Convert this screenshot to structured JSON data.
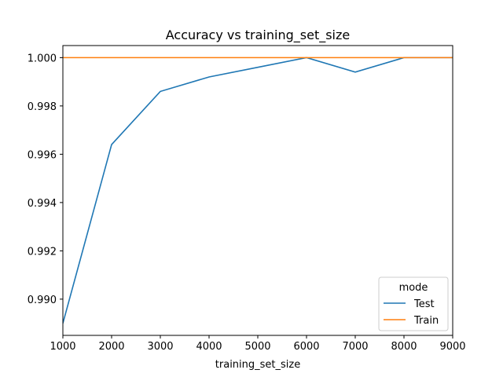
{
  "chart_data": {
    "type": "line",
    "title": "Accuracy vs training_set_size",
    "xlabel": "training_set_size",
    "ylabel": "",
    "xlim": [
      1000,
      9000
    ],
    "ylim": [
      0.9885,
      1.0005
    ],
    "xticks": [
      1000,
      2000,
      3000,
      4000,
      5000,
      6000,
      7000,
      8000,
      9000
    ],
    "yticks": [
      0.99,
      0.992,
      0.994,
      0.996,
      0.998,
      1.0
    ],
    "ytick_labels": [
      "0.990",
      "0.992",
      "0.994",
      "0.996",
      "0.998",
      "1.000"
    ],
    "grid": false,
    "legend": {
      "title": "mode",
      "placement": "lower-right"
    },
    "x": [
      1000,
      2000,
      3000,
      4000,
      5000,
      6000,
      7000,
      8000,
      9000
    ],
    "series": [
      {
        "name": "Test",
        "color": "#1f77b4",
        "values": [
          0.989,
          0.9964,
          0.9986,
          0.9992,
          0.9996,
          1.0,
          0.9994,
          1.0,
          1.0
        ]
      },
      {
        "name": "Train",
        "color": "#ff7f0e",
        "values": [
          1.0,
          1.0,
          1.0,
          1.0,
          1.0,
          1.0,
          1.0,
          1.0,
          1.0
        ]
      }
    ]
  }
}
